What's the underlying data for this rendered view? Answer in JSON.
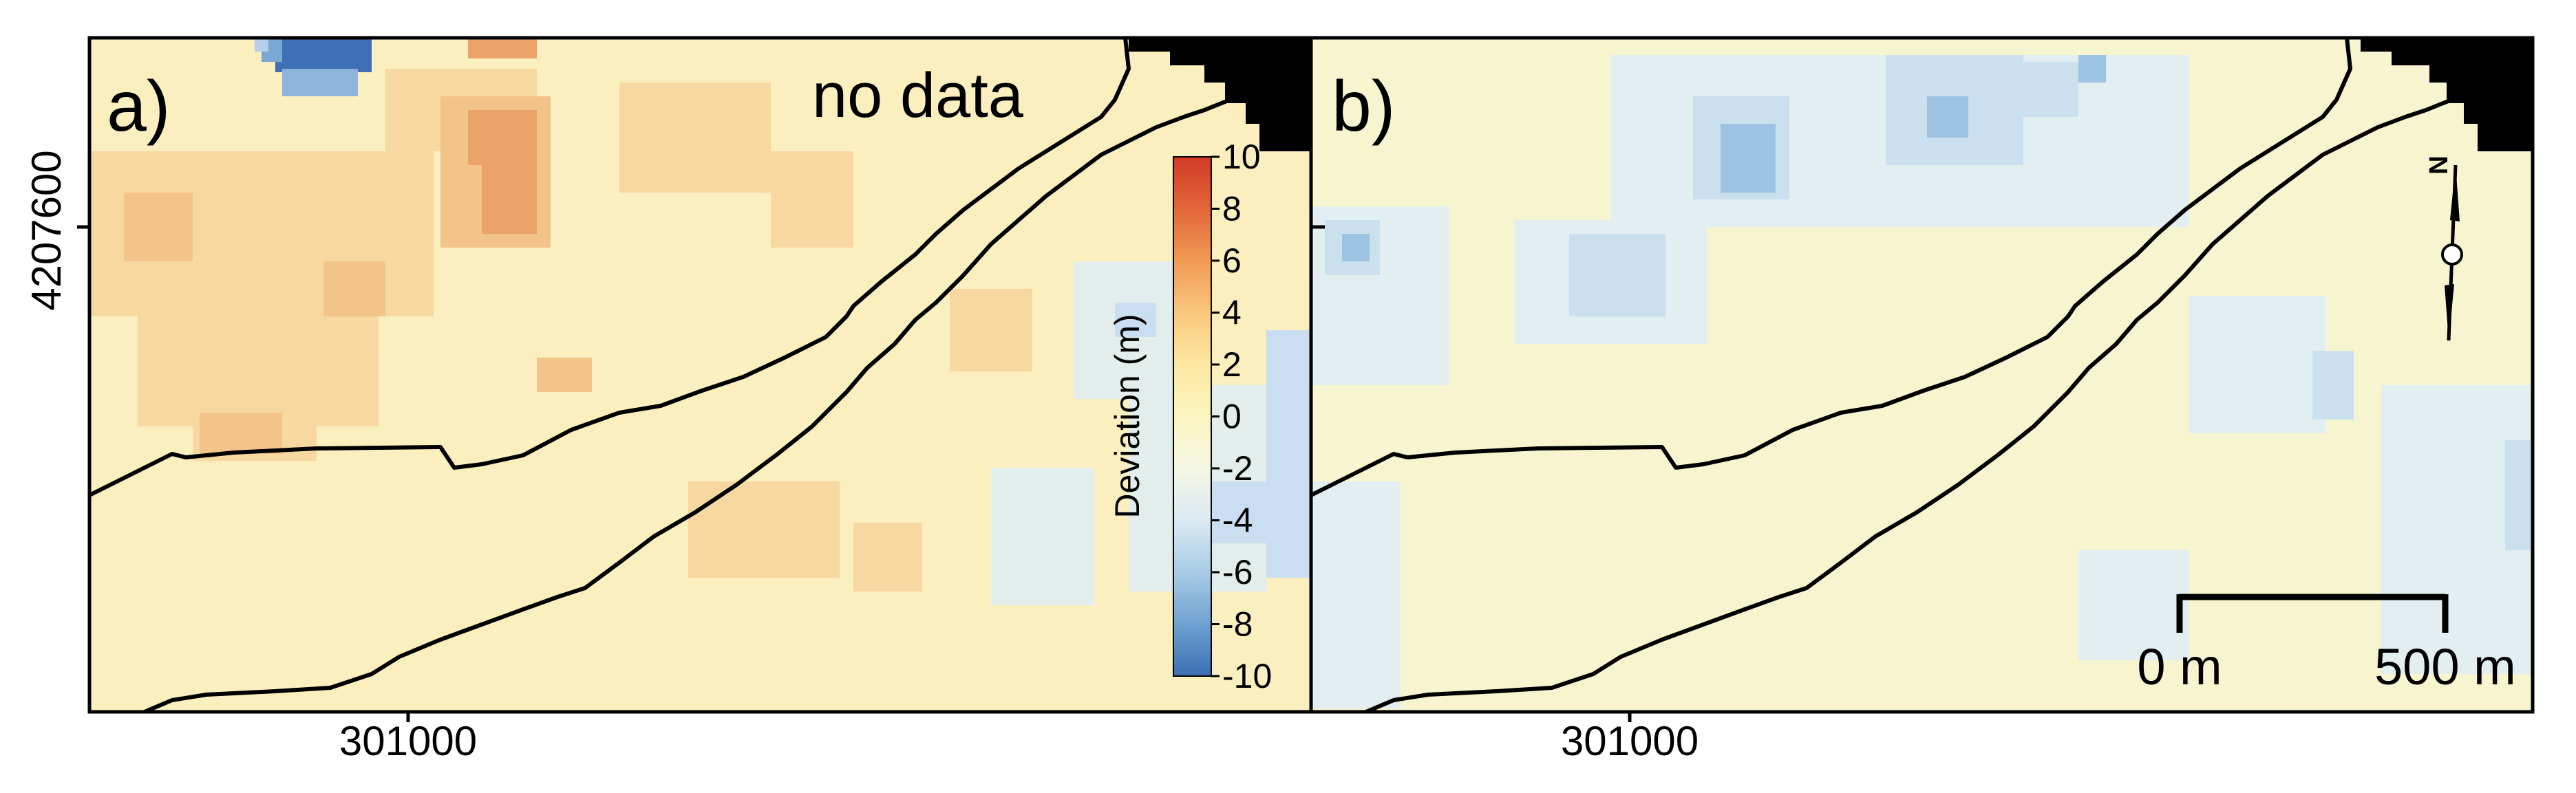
{
  "panels": [
    {
      "label": "a)",
      "x_tick": "301000",
      "y_tick": "4207600",
      "nodata_label": "no data"
    },
    {
      "label": "b)",
      "x_tick": "301000"
    }
  ],
  "colorbar": {
    "title": "Deviation (m)",
    "ticks": [
      "10",
      "8",
      "6",
      "4",
      "2",
      "0",
      "-2",
      "-4",
      "-6",
      "-8",
      "-10"
    ],
    "min": -10,
    "max": 10,
    "colors": [
      "#3b6fb3",
      "#6fa2d1",
      "#a9cce6",
      "#dbe9f3",
      "#f4f7e4",
      "#fcf5c0",
      "#fde8a2",
      "#f9c77c",
      "#f09a55",
      "#e3663a",
      "#d13b28"
    ]
  },
  "scale_bar": {
    "start_label": "0 m",
    "end_label": "500 m"
  },
  "north_arrow": {
    "label": "N"
  }
}
